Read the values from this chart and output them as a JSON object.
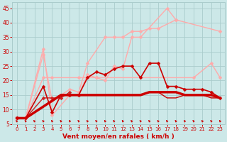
{
  "background_color": "#cce8e8",
  "grid_color": "#aacccc",
  "xlabel": "Vent moyen/en rafales ( km/h )",
  "xlabel_color": "#cc0000",
  "tick_color": "#cc0000",
  "xlim": [
    -0.5,
    23.5
  ],
  "ylim": [
    5,
    47
  ],
  "yticks": [
    5,
    10,
    15,
    20,
    25,
    30,
    35,
    40,
    45
  ],
  "xticks": [
    0,
    1,
    2,
    3,
    4,
    5,
    6,
    7,
    8,
    9,
    10,
    11,
    12,
    13,
    14,
    15,
    16,
    17,
    18,
    19,
    20,
    21,
    22,
    23
  ],
  "series": [
    {
      "x": [
        0,
        1,
        3,
        4,
        6,
        7,
        8,
        9,
        10,
        11,
        12,
        13,
        14,
        17,
        18
      ],
      "y": [
        7,
        7,
        31,
        8,
        15,
        15,
        22,
        21,
        20,
        25,
        24,
        35,
        35,
        45,
        41
      ],
      "color": "#ffaaaa",
      "lw": 1.0,
      "marker": "D",
      "ms": 2.5
    },
    {
      "x": [
        0,
        1,
        3,
        4,
        6,
        7,
        8,
        10,
        11,
        12,
        13,
        14,
        15,
        16,
        18,
        23
      ],
      "y": [
        7,
        7,
        29,
        13,
        17,
        16,
        26,
        35,
        35,
        35,
        37,
        37,
        38,
        38,
        41,
        37
      ],
      "color": "#ffaaaa",
      "lw": 1.0,
      "marker": "D",
      "ms": 2.5
    },
    {
      "x": [
        0,
        1,
        3,
        4,
        7,
        8,
        9,
        20,
        22,
        23
      ],
      "y": [
        7,
        7,
        21,
        21,
        21,
        21,
        21,
        21,
        26,
        21
      ],
      "color": "#ffaaaa",
      "lw": 1.0,
      "marker": "D",
      "ms": 2.5
    },
    {
      "x": [
        0,
        1,
        3,
        4,
        5,
        6
      ],
      "y": [
        7,
        7,
        14,
        14,
        14,
        16
      ],
      "color": "#cc2222",
      "lw": 1.0,
      "marker": "D",
      "ms": 2.5
    },
    {
      "x": [
        0,
        1,
        3,
        4,
        5,
        6,
        7,
        8,
        9,
        10,
        11,
        12,
        13,
        14,
        15,
        16,
        17,
        18,
        19,
        20,
        21,
        22,
        23
      ],
      "y": [
        7,
        7,
        18,
        9,
        15,
        15,
        15,
        21,
        23,
        22,
        24,
        25,
        25,
        21,
        26,
        26,
        18,
        18,
        17,
        17,
        17,
        16,
        14
      ],
      "color": "#cc0000",
      "lw": 1.2,
      "marker": "D",
      "ms": 2.5
    },
    {
      "x": [
        0,
        1,
        5,
        6,
        7,
        8,
        9,
        10,
        11,
        12,
        13,
        14,
        15,
        16,
        17,
        18,
        19,
        20,
        21,
        22,
        23
      ],
      "y": [
        7,
        7,
        15,
        15,
        15,
        15,
        15,
        15,
        15,
        15,
        15,
        15,
        16,
        16,
        16,
        16,
        15,
        15,
        15,
        15,
        14
      ],
      "color": "#cc0000",
      "lw": 2.5,
      "marker": null,
      "ms": 0
    },
    {
      "x": [
        0,
        1,
        5,
        6,
        7,
        8,
        9,
        10,
        11,
        12,
        13,
        14,
        15,
        16,
        17,
        18,
        19,
        20,
        21,
        22,
        23
      ],
      "y": [
        7,
        7,
        15,
        15,
        15,
        15,
        15,
        15,
        15,
        15,
        15,
        15,
        16,
        16,
        14,
        14,
        15,
        15,
        15,
        14,
        14
      ],
      "color": "#cc0000",
      "lw": 1.0,
      "marker": null,
      "ms": 0
    }
  ],
  "wind_arrows_x": [
    0,
    1,
    2,
    3,
    4,
    5,
    6,
    7,
    8,
    9,
    10,
    11,
    12,
    13,
    14,
    15,
    16,
    17,
    18,
    19,
    20,
    21,
    22,
    23
  ]
}
